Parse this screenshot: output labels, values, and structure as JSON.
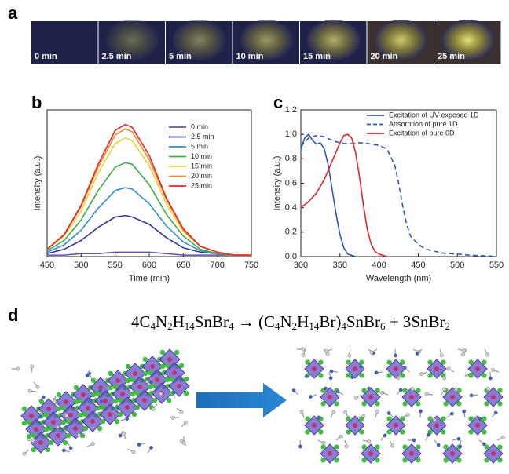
{
  "panel_labels": [
    "a",
    "b",
    "c",
    "d"
  ],
  "photos": {
    "labels": [
      "0 min",
      "2.5 min",
      "5 min",
      "10 min",
      "15 min",
      "20 min",
      "25 min"
    ]
  },
  "chart_data": [
    {
      "type": "line",
      "y_label": "Intensity (a.u.)",
      "x_label": "Time (min)",
      "x": [
        450,
        475,
        500,
        525,
        550,
        565,
        575,
        600,
        625,
        650,
        675,
        700,
        725,
        750
      ],
      "xlim": [
        450,
        750
      ],
      "xticks": [
        450,
        500,
        550,
        600,
        650,
        700,
        750
      ],
      "ylim": [
        0,
        1
      ],
      "yticks": [],
      "legend": "upper right",
      "series": [
        {
          "name": "0 min",
          "color": "#6a4fa8",
          "values": [
            0.01,
            0.01,
            0.02,
            0.02,
            0.03,
            0.03,
            0.03,
            0.03,
            0.02,
            0.01,
            0.01,
            0.01,
            0.01,
            0.01
          ]
        },
        {
          "name": "2.5 min",
          "color": "#33349a",
          "values": [
            0.02,
            0.05,
            0.11,
            0.2,
            0.27,
            0.28,
            0.27,
            0.22,
            0.13,
            0.06,
            0.03,
            0.02,
            0.01,
            0.01
          ]
        },
        {
          "name": "5 min",
          "color": "#2f8fd0",
          "values": [
            0.03,
            0.08,
            0.18,
            0.33,
            0.45,
            0.47,
            0.46,
            0.36,
            0.21,
            0.1,
            0.04,
            0.02,
            0.01,
            0.01
          ]
        },
        {
          "name": "10 min",
          "color": "#3dae46",
          "values": [
            0.04,
            0.11,
            0.25,
            0.45,
            0.61,
            0.64,
            0.63,
            0.49,
            0.29,
            0.14,
            0.05,
            0.02,
            0.01,
            0.01
          ]
        },
        {
          "name": "15 min",
          "color": "#e8d43a",
          "values": [
            0.05,
            0.14,
            0.31,
            0.57,
            0.77,
            0.81,
            0.79,
            0.62,
            0.36,
            0.17,
            0.07,
            0.03,
            0.01,
            0.01
          ]
        },
        {
          "name": "20 min",
          "color": "#f08a2c",
          "values": [
            0.05,
            0.15,
            0.34,
            0.61,
            0.83,
            0.87,
            0.85,
            0.66,
            0.39,
            0.18,
            0.07,
            0.03,
            0.01,
            0.01
          ]
        },
        {
          "name": "25 min",
          "color": "#e8262a",
          "values": [
            0.05,
            0.15,
            0.35,
            0.63,
            0.86,
            0.9,
            0.88,
            0.69,
            0.4,
            0.19,
            0.07,
            0.03,
            0.01,
            0.01
          ]
        }
      ]
    },
    {
      "type": "line",
      "y_label": "Intensity (a.u.)",
      "x_label": "Wavelength (nm)",
      "xlim": [
        300,
        550
      ],
      "xticks": [
        300,
        350,
        400,
        450,
        500,
        550
      ],
      "ylim": [
        0,
        1.2
      ],
      "yticks": [
        {
          "value": 0,
          "label": "0.0"
        },
        0.2,
        0.4,
        0.6,
        0.8,
        {
          "value": 1,
          "label": "1.0"
        },
        1.2
      ],
      "legend": "upper right",
      "series": [
        {
          "name": "Excitation of UV-exposed 1D",
          "color": "#2b58b8",
          "linestyle": "solid",
          "x": [
            300,
            305,
            310,
            315,
            320,
            325,
            330,
            335,
            340,
            345,
            350,
            355,
            360,
            365,
            370
          ],
          "values": [
            0.88,
            0.97,
            1.0,
            0.95,
            0.92,
            0.93,
            0.88,
            0.75,
            0.55,
            0.35,
            0.18,
            0.07,
            0.02,
            0.01,
            0
          ]
        },
        {
          "name": "Absorption of pure 1D",
          "color": "#2b58b8",
          "linestyle": "dashed",
          "x": [
            300,
            310,
            320,
            330,
            340,
            350,
            360,
            370,
            380,
            390,
            400,
            410,
            420,
            425,
            430,
            435,
            440,
            450,
            460,
            480,
            500,
            520,
            540,
            550
          ],
          "values": [
            0.9,
            0.97,
            0.99,
            0.98,
            0.95,
            0.93,
            0.92,
            0.93,
            0.93,
            0.92,
            0.91,
            0.88,
            0.75,
            0.6,
            0.42,
            0.27,
            0.17,
            0.1,
            0.06,
            0.03,
            0.02,
            0.01,
            0.005,
            0
          ]
        },
        {
          "name": "Excitation of pure 0D",
          "color": "#e8262a",
          "linestyle": "solid",
          "x": [
            300,
            310,
            320,
            330,
            340,
            350,
            355,
            360,
            365,
            370,
            375,
            380,
            385,
            390,
            395,
            400,
            410
          ],
          "values": [
            0.4,
            0.45,
            0.52,
            0.63,
            0.78,
            0.93,
            0.99,
            1.0,
            0.97,
            0.85,
            0.65,
            0.42,
            0.22,
            0.1,
            0.04,
            0.02,
            0
          ]
        }
      ]
    }
  ],
  "equation": [
    {
      "text": "4C"
    },
    {
      "sub": "4"
    },
    {
      "text": "N"
    },
    {
      "sub": "2"
    },
    {
      "text": "H"
    },
    {
      "sub": "14"
    },
    {
      "text": "SnBr"
    },
    {
      "sub": "4"
    },
    {
      "text": " → (C"
    },
    {
      "sub": "4"
    },
    {
      "text": "N"
    },
    {
      "sub": "2"
    },
    {
      "text": "H"
    },
    {
      "sub": "14"
    },
    {
      "text": "Br)"
    },
    {
      "sub": "4"
    },
    {
      "text": "SnBr"
    },
    {
      "sub": "6"
    },
    {
      "text": " + 3SnBr"
    },
    {
      "sub": "2"
    }
  ]
}
